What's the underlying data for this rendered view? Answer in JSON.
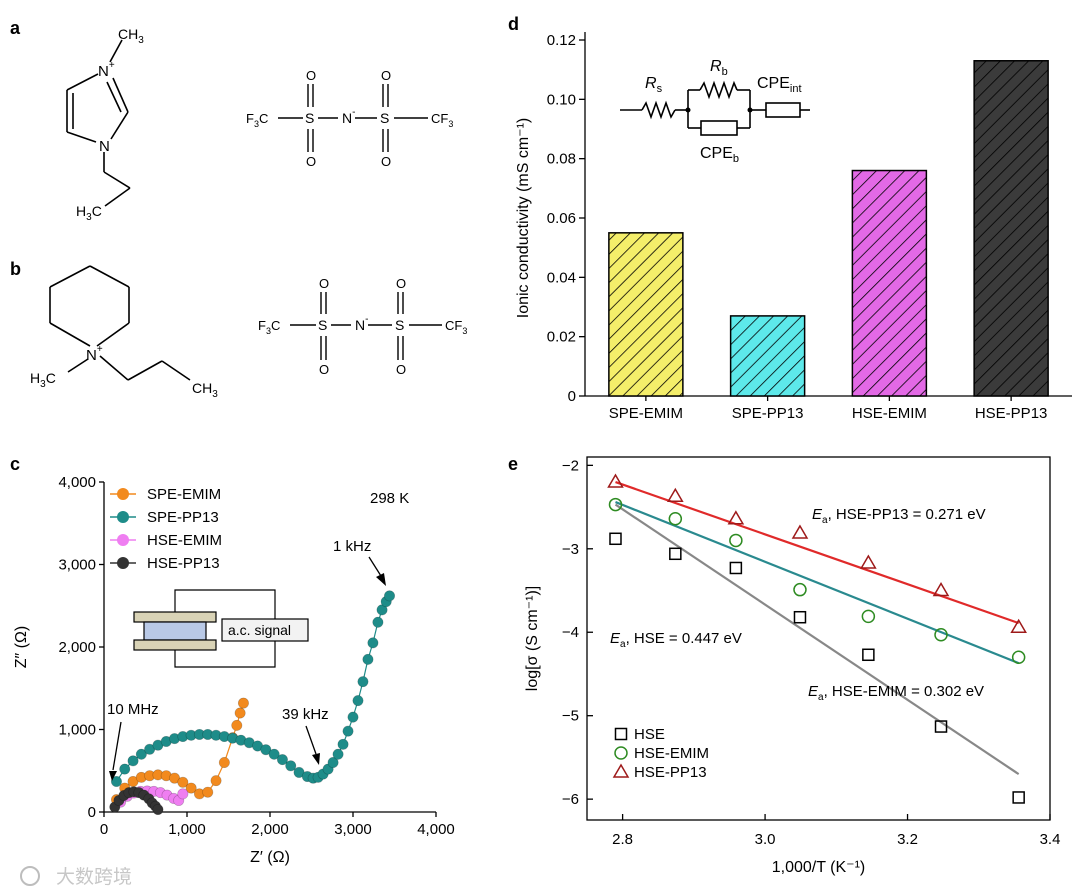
{
  "panels": {
    "a": {
      "label": "a",
      "cation": {
        "methyl": "CH",
        "methyl_sub": "3",
        "nplus": "N",
        "nplus_charge": "+",
        "n": "N",
        "ethyl_h": "H",
        "ethyl_sub": "3",
        "ethyl_c": "C"
      },
      "anion": {
        "cf3_left": "F",
        "cf3_left_sub": "3",
        "cf3_left_c": "C",
        "s1": "S",
        "s2": "S",
        "n": "N",
        "n_charge": "-",
        "o": "O",
        "cf3_right": "CF",
        "cf3_right_sub": "3"
      }
    },
    "b": {
      "label": "b",
      "cation": {
        "nplus": "N",
        "nplus_charge": "+",
        "methyl_h": "H",
        "methyl_sub": "3",
        "methyl_c": "C",
        "propyl": "CH",
        "propyl_sub": "3"
      },
      "anion": {
        "cf3_left": "F",
        "cf3_left_sub": "3",
        "cf3_left_c": "C",
        "s1": "S",
        "s2": "S",
        "n": "N",
        "n_charge": "-",
        "o": "O",
        "cf3_right": "CF",
        "cf3_right_sub": "3"
      }
    },
    "c": {
      "label": "c",
      "temperature": "298 K",
      "inset_label": "a.c. signal",
      "annotations": {
        "high_freq": "10 MHz",
        "mid_freq": "39 kHz",
        "low_freq": "1 kHz"
      }
    },
    "d": {
      "label": "d",
      "circuit": {
        "rs": "R",
        "rs_sub": "s",
        "rb": "R",
        "rb_sub": "b",
        "cpe_int": "CPE",
        "cpe_int_sub": "int",
        "cpe_b": "CPE",
        "cpe_b_sub": "b"
      }
    },
    "e": {
      "label": "e",
      "annotations": [
        {
          "prefix": "E",
          "prefix_sub": "a",
          "text": ", HSE-PP13 = 0.271 eV",
          "color": "#9e1a1a"
        },
        {
          "prefix": "E",
          "prefix_sub": "a",
          "text": ", HSE = 0.447 eV",
          "color": "#000000"
        },
        {
          "prefix": "E",
          "prefix_sub": "a",
          "text": ", HSE-EMIM = 0.302 eV",
          "color": "#2e8b22"
        }
      ]
    }
  },
  "chart_data": [
    {
      "id": "d",
      "type": "bar",
      "categories": [
        "SPE-EMIM",
        "SPE-PP13",
        "HSE-EMIM",
        "HSE-PP13"
      ],
      "values": [
        0.055,
        0.027,
        0.076,
        0.113
      ],
      "colors": [
        "#f4ee6a",
        "#5de9ea",
        "#e369e6",
        "#3b3b3b"
      ],
      "ylabel": "Ionic conductivity (mS cm⁻¹)",
      "ylim": [
        0,
        0.12
      ],
      "yticks": [
        "0",
        "0.02",
        "0.04",
        "0.06",
        "0.08",
        "0.10",
        "0.12"
      ],
      "hatch": "diagonal"
    },
    {
      "id": "c",
      "type": "scatter",
      "xlabel": "Z′ (Ω)",
      "ylabel": "Z″ (Ω)",
      "xlim": [
        0,
        4000
      ],
      "ylim": [
        0,
        4000
      ],
      "xticks": [
        "0",
        "1,000",
        "2,000",
        "3,000",
        "4,000"
      ],
      "yticks": [
        "0",
        "1,000",
        "2,000",
        "3,000",
        "4,000"
      ],
      "series": [
        {
          "name": "SPE-EMIM",
          "color": "#f28a1e",
          "x": [
            150,
            250,
            350,
            450,
            550,
            650,
            750,
            850,
            950,
            1050,
            1150,
            1250,
            1350,
            1450,
            1550,
            1600,
            1640,
            1680
          ],
          "y": [
            150,
            290,
            370,
            420,
            440,
            450,
            440,
            410,
            360,
            290,
            220,
            240,
            380,
            600,
            900,
            1050,
            1200,
            1320
          ]
        },
        {
          "name": "SPE-PP13",
          "color": "#1e8c89",
          "x": [
            150,
            250,
            350,
            450,
            550,
            650,
            750,
            850,
            950,
            1050,
            1150,
            1250,
            1350,
            1450,
            1550,
            1650,
            1750,
            1850,
            1950,
            2050,
            2150,
            2250,
            2350,
            2450,
            2520,
            2580,
            2640,
            2700,
            2760,
            2820,
            2880,
            2940,
            3000,
            3060,
            3120,
            3180,
            3240,
            3300,
            3350,
            3400,
            3440
          ],
          "y": [
            370,
            520,
            620,
            700,
            760,
            810,
            855,
            890,
            915,
            930,
            940,
            940,
            930,
            915,
            895,
            870,
            840,
            800,
            755,
            700,
            635,
            560,
            480,
            430,
            410,
            420,
            460,
            520,
            600,
            700,
            820,
            980,
            1150,
            1350,
            1580,
            1850,
            2050,
            2300,
            2450,
            2550,
            2620
          ]
        },
        {
          "name": "HSE-EMIM",
          "color": "#ef7ef1",
          "x": [
            200,
            280,
            360,
            440,
            520,
            600,
            680,
            760,
            840,
            900,
            950
          ],
          "y": [
            120,
            190,
            230,
            250,
            255,
            250,
            235,
            205,
            165,
            140,
            220
          ]
        },
        {
          "name": "HSE-PP13",
          "color": "#333333",
          "x": [
            130,
            180,
            240,
            300,
            360,
            420,
            480,
            540,
            580,
            620,
            650
          ],
          "y": [
            60,
            140,
            200,
            235,
            245,
            235,
            205,
            160,
            110,
            70,
            30
          ]
        }
      ]
    },
    {
      "id": "e",
      "type": "scatter",
      "xlabel": "1,000/T (K⁻¹)",
      "ylabel": "log[σ (S cm⁻¹)]",
      "xlim": [
        2.75,
        3.4
      ],
      "ylim": [
        -6.25,
        -1.9
      ],
      "xticks": [
        "2.8",
        "3.0",
        "3.2",
        "3.4"
      ],
      "yticks": [
        "−6",
        "−5",
        "−4",
        "−3",
        "−2"
      ],
      "series": [
        {
          "name": "HSE",
          "marker": "square",
          "color": "#000000",
          "x": [
            2.79,
            2.874,
            2.959,
            3.049,
            3.145,
            3.247,
            3.356
          ],
          "y": [
            -2.88,
            -3.06,
            -3.23,
            -3.82,
            -4.27,
            -5.13,
            -5.98
          ],
          "fit": [
            [
              2.79,
              -2.47
            ],
            [
              3.356,
              -5.7
            ]
          ],
          "fit_color": "#888888"
        },
        {
          "name": "HSE-EMIM",
          "marker": "circle",
          "color": "#2e8b22",
          "x": [
            2.79,
            2.874,
            2.959,
            3.049,
            3.145,
            3.247,
            3.356
          ],
          "y": [
            -2.47,
            -2.64,
            -2.9,
            -3.49,
            -3.81,
            -4.03,
            -4.3
          ],
          "fit": [
            [
              2.79,
              -2.44
            ],
            [
              3.356,
              -4.37
            ]
          ],
          "fit_color": "#2a8a8f"
        },
        {
          "name": "HSE-PP13",
          "marker": "triangle",
          "color": "#9e1a1a",
          "x": [
            2.79,
            2.874,
            2.959,
            3.049,
            3.145,
            3.247,
            3.356
          ],
          "y": [
            -2.2,
            -2.37,
            -2.64,
            -2.81,
            -3.17,
            -3.5,
            -3.94
          ],
          "fit": [
            [
              2.79,
              -2.2
            ],
            [
              3.356,
              -3.89
            ]
          ],
          "fit_color": "#e02a2a"
        }
      ]
    }
  ],
  "watermark": "大数跨境"
}
